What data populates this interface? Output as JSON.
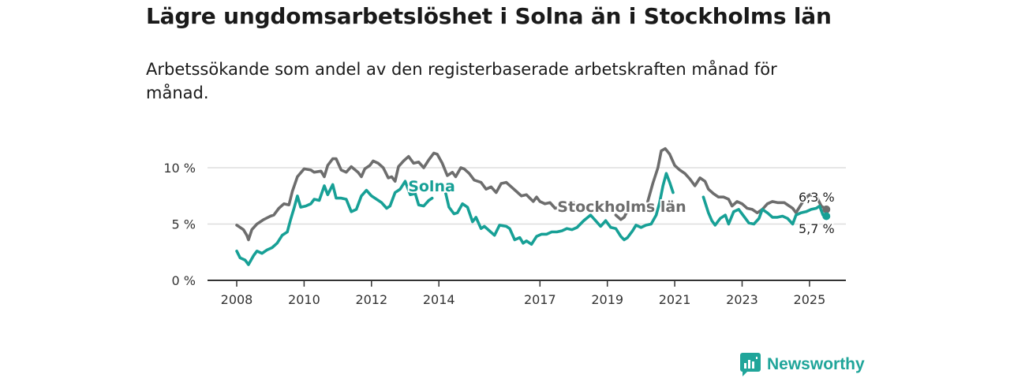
{
  "title": "Lägre ungdomsarbetslöshet i Solna än i Stockholms län",
  "subtitle": "Arbetssökande som andel av den registerbaserade arbetskraften månad för månad.",
  "logo_text": "Newsworthy",
  "colors": {
    "solna": "#17a096",
    "stockholm": "#6d6d6d",
    "grid": "#dddddd",
    "axis": "#333333",
    "logo": "#20a59a"
  },
  "chart_data": {
    "type": "line",
    "title": "Lägre ungdomsarbetslöshet i Solna än i Stockholms län",
    "subtitle": "Arbetssökande som andel av den registerbaserade arbetskraften månad för månad.",
    "ylim": [
      0,
      10
    ],
    "yticks": [
      0,
      5,
      10
    ],
    "ytick_labels": [
      "0 %",
      "5 %",
      "10 %"
    ],
    "xlim": [
      2007.5,
      2026.0
    ],
    "xticks": [
      2008,
      2010,
      2012,
      2014,
      2017,
      2019,
      2021,
      2023,
      2025
    ],
    "xtick_labels": [
      "2008",
      "2010",
      "2012",
      "2014",
      "2017",
      "2019",
      "2021",
      "2023",
      "2025"
    ],
    "grid": true,
    "series": [
      {
        "name": "Stockholms län",
        "end_label": "6,3 %",
        "color": "#6d6d6d",
        "points": [
          [
            2008.0,
            4.9
          ],
          [
            2008.1,
            4.7
          ],
          [
            2008.2,
            4.5
          ],
          [
            2008.3,
            4.0
          ],
          [
            2008.35,
            3.6
          ],
          [
            2008.45,
            4.5
          ],
          [
            2008.6,
            5.0
          ],
          [
            2008.8,
            5.4
          ],
          [
            2009.0,
            5.7
          ],
          [
            2009.1,
            5.8
          ],
          [
            2009.25,
            6.4
          ],
          [
            2009.4,
            6.8
          ],
          [
            2009.55,
            6.7
          ],
          [
            2009.65,
            7.9
          ],
          [
            2009.8,
            9.2
          ],
          [
            2010.0,
            9.9
          ],
          [
            2010.2,
            9.8
          ],
          [
            2010.3,
            9.6
          ],
          [
            2010.5,
            9.7
          ],
          [
            2010.6,
            9.2
          ],
          [
            2010.7,
            10.2
          ],
          [
            2010.85,
            10.8
          ],
          [
            2010.95,
            10.8
          ],
          [
            2011.1,
            9.8
          ],
          [
            2011.25,
            9.6
          ],
          [
            2011.4,
            10.1
          ],
          [
            2011.6,
            9.6
          ],
          [
            2011.7,
            9.2
          ],
          [
            2011.8,
            9.9
          ],
          [
            2011.95,
            10.2
          ],
          [
            2012.05,
            10.6
          ],
          [
            2012.2,
            10.4
          ],
          [
            2012.35,
            10.0
          ],
          [
            2012.5,
            9.1
          ],
          [
            2012.6,
            9.2
          ],
          [
            2012.7,
            8.8
          ],
          [
            2012.8,
            10.1
          ],
          [
            2012.95,
            10.6
          ],
          [
            2013.1,
            11.0
          ],
          [
            2013.25,
            10.4
          ],
          [
            2013.4,
            10.5
          ],
          [
            2013.55,
            10.0
          ],
          [
            2013.7,
            10.7
          ],
          [
            2013.85,
            11.3
          ],
          [
            2013.95,
            11.2
          ],
          [
            2014.1,
            10.4
          ],
          [
            2014.25,
            9.3
          ],
          [
            2014.4,
            9.6
          ],
          [
            2014.5,
            9.2
          ],
          [
            2014.65,
            10.0
          ],
          [
            2014.75,
            9.9
          ],
          [
            2014.9,
            9.5
          ],
          [
            2015.05,
            8.9
          ],
          [
            2015.25,
            8.7
          ],
          [
            2015.4,
            8.1
          ],
          [
            2015.55,
            8.3
          ],
          [
            2015.7,
            7.8
          ],
          [
            2015.85,
            8.6
          ],
          [
            2016.0,
            8.7
          ],
          [
            2016.15,
            8.3
          ],
          [
            2016.3,
            7.9
          ],
          [
            2016.45,
            7.5
          ],
          [
            2016.6,
            7.6
          ],
          [
            2016.8,
            7.0
          ],
          [
            2016.9,
            7.4
          ],
          [
            2017.0,
            7.0
          ],
          [
            2017.15,
            6.8
          ],
          [
            2017.3,
            6.9
          ],
          [
            2017.45,
            6.4
          ],
          [
            2017.6,
            6.5
          ],
          [
            2017.75,
            6.1
          ],
          [
            2017.9,
            6.6
          ],
          [
            2018.0,
            6.9
          ]
        ],
        "points2": [
          [
            2019.25,
            5.8
          ],
          [
            2019.4,
            5.4
          ],
          [
            2019.5,
            5.6
          ],
          [
            2019.6,
            6.2
          ],
          [
            2019.75,
            6.8
          ]
        ],
        "points3": [
          [
            2020.2,
            7.0
          ],
          [
            2020.35,
            8.6
          ],
          [
            2020.5,
            10.0
          ],
          [
            2020.6,
            11.5
          ],
          [
            2020.72,
            11.7
          ],
          [
            2020.85,
            11.2
          ],
          [
            2021.0,
            10.2
          ],
          [
            2021.15,
            9.8
          ],
          [
            2021.3,
            9.5
          ],
          [
            2021.45,
            9.0
          ],
          [
            2021.6,
            8.4
          ],
          [
            2021.75,
            9.1
          ],
          [
            2021.9,
            8.8
          ],
          [
            2022.0,
            8.1
          ],
          [
            2022.15,
            7.7
          ],
          [
            2022.3,
            7.4
          ],
          [
            2022.45,
            7.4
          ],
          [
            2022.6,
            7.2
          ],
          [
            2022.7,
            6.6
          ],
          [
            2022.85,
            7.0
          ],
          [
            2023.0,
            6.8
          ],
          [
            2023.15,
            6.4
          ],
          [
            2023.3,
            6.3
          ],
          [
            2023.45,
            6.0
          ],
          [
            2023.6,
            6.3
          ],
          [
            2023.75,
            6.8
          ],
          [
            2023.9,
            7.0
          ],
          [
            2024.05,
            6.9
          ],
          [
            2024.25,
            6.9
          ],
          [
            2024.4,
            6.6
          ],
          [
            2024.5,
            6.4
          ],
          [
            2024.6,
            6.0
          ],
          [
            2024.7,
            6.5
          ],
          [
            2024.85,
            7.2
          ],
          [
            2025.0,
            7.6
          ],
          [
            2025.2,
            7.5
          ],
          [
            2025.35,
            6.6
          ],
          [
            2025.45,
            6.4
          ],
          [
            2025.5,
            6.3
          ]
        ]
      },
      {
        "name": "Solna",
        "end_label": "5,7 %",
        "color": "#17a096",
        "points": [
          [
            2008.0,
            2.6
          ],
          [
            2008.1,
            2.0
          ],
          [
            2008.25,
            1.8
          ],
          [
            2008.35,
            1.4
          ],
          [
            2008.5,
            2.2
          ],
          [
            2008.6,
            2.6
          ],
          [
            2008.75,
            2.4
          ],
          [
            2008.9,
            2.7
          ],
          [
            2009.05,
            2.9
          ],
          [
            2009.2,
            3.3
          ],
          [
            2009.35,
            4.0
          ],
          [
            2009.5,
            4.3
          ],
          [
            2009.6,
            5.4
          ],
          [
            2009.7,
            6.4
          ],
          [
            2009.8,
            7.5
          ],
          [
            2009.9,
            6.5
          ],
          [
            2010.05,
            6.6
          ],
          [
            2010.2,
            6.8
          ],
          [
            2010.3,
            7.2
          ],
          [
            2010.45,
            7.1
          ],
          [
            2010.6,
            8.4
          ],
          [
            2010.7,
            7.6
          ],
          [
            2010.85,
            8.5
          ],
          [
            2010.95,
            7.3
          ],
          [
            2011.1,
            7.3
          ],
          [
            2011.25,
            7.2
          ],
          [
            2011.4,
            6.1
          ],
          [
            2011.55,
            6.3
          ],
          [
            2011.7,
            7.5
          ],
          [
            2011.85,
            8.0
          ],
          [
            2012.0,
            7.5
          ],
          [
            2012.15,
            7.2
          ],
          [
            2012.3,
            6.9
          ],
          [
            2012.45,
            6.4
          ],
          [
            2012.55,
            6.6
          ],
          [
            2012.7,
            7.8
          ],
          [
            2012.85,
            8.1
          ],
          [
            2013.0,
            8.8
          ],
          [
            2013.15,
            7.6
          ],
          [
            2013.3,
            7.7
          ],
          [
            2013.4,
            6.7
          ],
          [
            2013.55,
            6.6
          ],
          [
            2013.7,
            7.1
          ],
          [
            2013.8,
            7.3
          ]
        ],
        "points2": [
          [
            2014.15,
            8.4
          ],
          [
            2014.3,
            6.5
          ],
          [
            2014.45,
            5.9
          ],
          [
            2014.55,
            6.0
          ],
          [
            2014.7,
            6.8
          ],
          [
            2014.85,
            6.5
          ],
          [
            2015.0,
            5.2
          ],
          [
            2015.1,
            5.6
          ],
          [
            2015.25,
            4.6
          ],
          [
            2015.35,
            4.8
          ],
          [
            2015.5,
            4.4
          ],
          [
            2015.65,
            4.0
          ],
          [
            2015.8,
            4.9
          ],
          [
            2016.0,
            4.8
          ],
          [
            2016.1,
            4.6
          ],
          [
            2016.25,
            3.6
          ],
          [
            2016.4,
            3.8
          ],
          [
            2016.5,
            3.3
          ],
          [
            2016.6,
            3.5
          ],
          [
            2016.75,
            3.2
          ],
          [
            2016.9,
            3.9
          ],
          [
            2017.05,
            4.1
          ],
          [
            2017.2,
            4.1
          ],
          [
            2017.35,
            4.3
          ],
          [
            2017.5,
            4.3
          ],
          [
            2017.65,
            4.4
          ],
          [
            2017.8,
            4.6
          ],
          [
            2017.95,
            4.5
          ],
          [
            2018.1,
            4.7
          ],
          [
            2018.3,
            5.3
          ],
          [
            2018.5,
            5.8
          ],
          [
            2018.65,
            5.3
          ],
          [
            2018.8,
            4.8
          ],
          [
            2018.95,
            5.3
          ],
          [
            2019.1,
            4.7
          ],
          [
            2019.25,
            4.6
          ],
          [
            2019.4,
            3.9
          ],
          [
            2019.5,
            3.6
          ],
          [
            2019.6,
            3.8
          ],
          [
            2019.75,
            4.4
          ],
          [
            2019.85,
            4.9
          ],
          [
            2020.0,
            4.7
          ],
          [
            2020.15,
            4.9
          ],
          [
            2020.3,
            5.0
          ],
          [
            2020.45,
            5.8
          ],
          [
            2020.55,
            6.9
          ],
          [
            2020.65,
            8.4
          ],
          [
            2020.75,
            9.5
          ],
          [
            2020.85,
            8.7
          ],
          [
            2020.95,
            7.8
          ]
        ],
        "points3": [
          [
            2021.85,
            7.4
          ],
          [
            2022.0,
            6.0
          ],
          [
            2022.1,
            5.3
          ],
          [
            2022.2,
            4.9
          ],
          [
            2022.35,
            5.5
          ],
          [
            2022.5,
            5.8
          ],
          [
            2022.6,
            5.0
          ],
          [
            2022.75,
            6.1
          ],
          [
            2022.9,
            6.3
          ],
          [
            2023.05,
            5.7
          ],
          [
            2023.2,
            5.1
          ],
          [
            2023.35,
            5.0
          ],
          [
            2023.5,
            5.5
          ],
          [
            2023.6,
            6.3
          ],
          [
            2023.75,
            6.0
          ],
          [
            2023.9,
            5.6
          ],
          [
            2024.05,
            5.6
          ],
          [
            2024.2,
            5.7
          ],
          [
            2024.35,
            5.5
          ],
          [
            2024.5,
            5.0
          ],
          [
            2024.6,
            5.8
          ],
          [
            2024.75,
            6.0
          ],
          [
            2024.9,
            6.1
          ],
          [
            2025.05,
            6.3
          ],
          [
            2025.2,
            6.4
          ],
          [
            2025.3,
            6.6
          ],
          [
            2025.4,
            5.8
          ],
          [
            2025.5,
            5.7
          ]
        ]
      }
    ]
  }
}
